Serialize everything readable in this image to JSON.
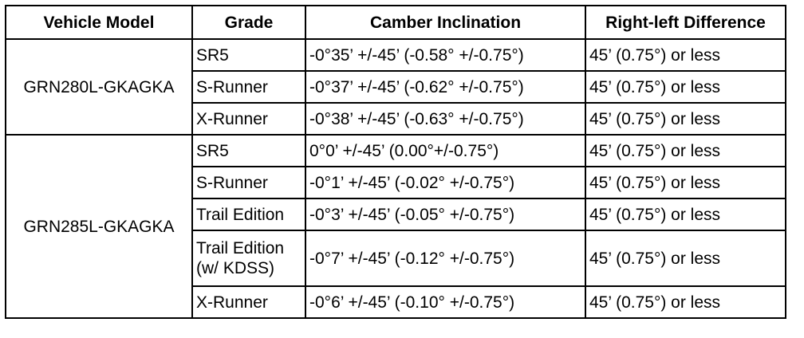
{
  "table": {
    "header": [
      "Vehicle Model",
      "Grade",
      "Camber Inclination",
      "Right-left Difference"
    ],
    "groups": [
      {
        "model": "GRN280L-GKAGKA",
        "rows": [
          [
            "SR5",
            "-0°35’ +/-45’ (-0.58° +/-0.75°)",
            "45’ (0.75°) or less"
          ],
          [
            "S-Runner",
            "-0°37’ +/-45’ (-0.62° +/-0.75°)",
            "45’ (0.75°) or less"
          ],
          [
            "X-Runner",
            "-0°38’ +/-45’ (-0.63° +/-0.75°)",
            "45’ (0.75°) or less"
          ]
        ]
      },
      {
        "model": "GRN285L-GKAGKA",
        "rows": [
          [
            "SR5",
            "0°0’ +/-45’ (0.00°+/-0.75°)",
            "45’ (0.75°) or less"
          ],
          [
            "S-Runner",
            "-0°1’ +/-45’ (-0.02° +/-0.75°)",
            "45’ (0.75°) or less"
          ],
          [
            "Trail Edition",
            "-0°3’ +/-45’ (-0.05° +/-0.75°)",
            "45’ (0.75°) or less"
          ],
          [
            "Trail Edition (w/ KDSS)",
            "-0°7’ +/-45’ (-0.12° +/-0.75°)",
            "45’ (0.75°) or less"
          ],
          [
            "X-Runner",
            "-0°6’ +/-45’ (-0.10° +/-0.75°)",
            "45’ (0.75°) or less"
          ]
        ]
      }
    ]
  }
}
